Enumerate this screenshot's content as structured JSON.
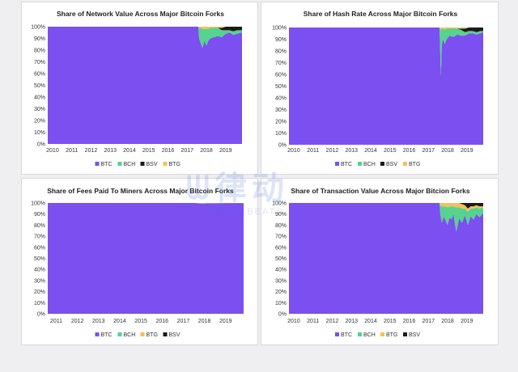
{
  "colors": {
    "btc": "#7b4ff0",
    "bch": "#55d38f",
    "bsv": "#1b1b1b",
    "btg": "#f2c15c",
    "axis_text": "#333333",
    "title_text": "#222222"
  },
  "chart_data": [
    {
      "type": "area",
      "title": "Share of Network Value Across Major Bitcoin Forks",
      "xlabel": "",
      "ylabel": "",
      "x_ticks": [
        "2010",
        "2011",
        "2012",
        "2013",
        "2014",
        "2015",
        "2016",
        "2017",
        "2018",
        "2019"
      ],
      "x_range": [
        2009.75,
        2019.85
      ],
      "y_ticks": [
        "0%",
        "10%",
        "20%",
        "30%",
        "40%",
        "50%",
        "60%",
        "70%",
        "80%",
        "90%",
        "100%"
      ],
      "ylim": [
        0,
        100
      ],
      "legend": [
        "BTC",
        "BCH",
        "BSV",
        "BTG"
      ],
      "legend_position": "bottom",
      "fork_start": 2017.58,
      "series": [
        {
          "name": "BTC",
          "x": [
            2009.75,
            2017.58,
            2017.62,
            2017.7,
            2017.8,
            2017.9,
            2018.0,
            2018.1,
            2018.2,
            2018.4,
            2018.6,
            2018.8,
            2019.0,
            2019.2,
            2019.4,
            2019.6,
            2019.85
          ],
          "values": [
            100,
            100,
            90,
            86,
            82,
            88,
            84,
            88,
            90,
            91,
            92,
            91,
            94,
            95,
            93,
            94,
            95
          ]
        },
        {
          "name": "BCH",
          "x": [
            2009.75,
            2017.58,
            2017.62,
            2017.7,
            2017.8,
            2017.9,
            2018.0,
            2018.1,
            2018.2,
            2018.4,
            2018.6,
            2018.8,
            2019.0,
            2019.2,
            2019.4,
            2019.6,
            2019.85
          ],
          "values": [
            0,
            0,
            9,
            13,
            16,
            10,
            14,
            10,
            9,
            8,
            7,
            6,
            3,
            2,
            3,
            3,
            2
          ]
        },
        {
          "name": "BSV",
          "x": [
            2009.75,
            2017.58,
            2017.62,
            2017.7,
            2017.8,
            2017.9,
            2018.0,
            2018.1,
            2018.2,
            2018.4,
            2018.6,
            2018.8,
            2019.0,
            2019.2,
            2019.4,
            2019.6,
            2019.85
          ],
          "values": [
            0,
            0,
            0,
            0,
            0,
            0,
            0,
            0,
            0,
            0,
            0,
            2,
            3,
            3,
            4,
            3,
            3
          ]
        },
        {
          "name": "BTG",
          "x": [
            2009.75,
            2017.58,
            2017.62,
            2017.7,
            2017.8,
            2017.9,
            2018.0,
            2018.1,
            2018.2,
            2018.4,
            2018.6,
            2018.8,
            2019.0,
            2019.2,
            2019.4,
            2019.6,
            2019.85
          ],
          "values": [
            0,
            0,
            1,
            1,
            2,
            2,
            2,
            2,
            1,
            1,
            1,
            1,
            0,
            0,
            0,
            0,
            0
          ]
        }
      ]
    },
    {
      "type": "area",
      "title": "Share of Hash Rate Across Major Bitcoin Forks",
      "xlabel": "",
      "ylabel": "",
      "x_ticks": [
        "2010",
        "2011",
        "2012",
        "2013",
        "2014",
        "2015",
        "2016",
        "2017",
        "2018",
        "2019"
      ],
      "x_range": [
        2009.75,
        2019.85
      ],
      "y_ticks": [
        "0%",
        "10%",
        "20%",
        "30%",
        "40%",
        "50%",
        "60%",
        "70%",
        "80%",
        "90%",
        "100%"
      ],
      "ylim": [
        0,
        100
      ],
      "legend": [
        "BTC",
        "BCH",
        "BSV",
        "BTG"
      ],
      "legend_position": "bottom",
      "fork_start": 2017.58,
      "series": [
        {
          "name": "BTC",
          "x": [
            2009.75,
            2017.58,
            2017.6,
            2017.65,
            2017.7,
            2017.75,
            2017.85,
            2017.95,
            2018.1,
            2018.3,
            2018.5,
            2018.7,
            2018.9,
            2019.1,
            2019.3,
            2019.5,
            2019.7,
            2019.85
          ],
          "values": [
            100,
            100,
            88,
            58,
            85,
            90,
            86,
            90,
            93,
            92,
            94,
            93,
            93,
            95,
            95,
            94,
            95,
            96
          ]
        },
        {
          "name": "BCH",
          "x": [
            2009.75,
            2017.58,
            2017.6,
            2017.65,
            2017.7,
            2017.75,
            2017.85,
            2017.95,
            2018.1,
            2018.3,
            2018.5,
            2018.7,
            2018.9,
            2019.1,
            2019.3,
            2019.5,
            2019.7,
            2019.85
          ],
          "values": [
            0,
            0,
            11,
            40,
            14,
            9,
            12,
            9,
            6,
            7,
            5,
            5,
            3,
            2,
            2,
            2,
            2,
            1
          ]
        },
        {
          "name": "BSV",
          "x": [
            2009.75,
            2017.58,
            2017.6,
            2017.65,
            2017.7,
            2017.75,
            2017.85,
            2017.95,
            2018.1,
            2018.3,
            2018.5,
            2018.7,
            2018.9,
            2019.1,
            2019.3,
            2019.5,
            2019.7,
            2019.85
          ],
          "values": [
            0,
            0,
            0,
            0,
            0,
            0,
            0,
            0,
            0,
            0,
            0,
            1,
            3,
            3,
            3,
            4,
            3,
            3
          ]
        },
        {
          "name": "BTG",
          "x": [
            2009.75,
            2017.58,
            2017.6,
            2017.65,
            2017.7,
            2017.75,
            2017.85,
            2017.95,
            2018.1,
            2018.3,
            2018.5,
            2018.7,
            2018.9,
            2019.1,
            2019.3,
            2019.5,
            2019.7,
            2019.85
          ],
          "values": [
            0,
            0,
            1,
            2,
            1,
            1,
            2,
            1,
            1,
            1,
            1,
            1,
            1,
            0,
            0,
            0,
            0,
            0
          ]
        }
      ]
    },
    {
      "type": "area",
      "title": "Share of Fees Paid To Miners Across Major Bitcoin Forks",
      "xlabel": "",
      "ylabel": "",
      "x_ticks": [
        "2011",
        "2012",
        "2013",
        "2014",
        "2015",
        "2016",
        "2017",
        "2018",
        "2019"
      ],
      "x_range": [
        2010.6,
        2019.85
      ],
      "y_ticks": [
        "0%",
        "10%",
        "20%",
        "30%",
        "40%",
        "50%",
        "60%",
        "70%",
        "80%",
        "90%",
        "100%"
      ],
      "ylim": [
        0,
        100
      ],
      "legend": [
        "BTC",
        "BCH",
        "BTG",
        "BSV"
      ],
      "legend_position": "bottom",
      "fork_start": 2017.58,
      "series": [
        {
          "name": "BTC",
          "x": [
            2010.6,
            2017.58,
            2017.7,
            2017.9,
            2018.2,
            2018.6,
            2019.0,
            2019.4,
            2019.85
          ],
          "values": [
            100,
            100,
            99.6,
            99.5,
            99.7,
            99.8,
            99.8,
            99.8,
            99.8
          ]
        },
        {
          "name": "BCH",
          "x": [
            2010.6,
            2017.58,
            2017.7,
            2017.9,
            2018.2,
            2018.6,
            2019.0,
            2019.4,
            2019.85
          ],
          "values": [
            0,
            0,
            0.3,
            0.4,
            0.2,
            0.1,
            0.1,
            0.1,
            0.1
          ]
        },
        {
          "name": "BTG",
          "x": [
            2010.6,
            2017.58,
            2017.7,
            2017.9,
            2018.2,
            2018.6,
            2019.0,
            2019.4,
            2019.85
          ],
          "values": [
            0,
            0,
            0.1,
            0.1,
            0.1,
            0.1,
            0,
            0,
            0
          ]
        },
        {
          "name": "BSV",
          "x": [
            2010.6,
            2017.58,
            2017.7,
            2017.9,
            2018.2,
            2018.6,
            2019.0,
            2019.4,
            2019.85
          ],
          "values": [
            0,
            0,
            0,
            0,
            0,
            0,
            0.1,
            0.1,
            0.1
          ]
        }
      ]
    },
    {
      "type": "area",
      "title": "Share of Transaction Value Across Major Bitcion Forks",
      "xlabel": "",
      "ylabel": "",
      "x_ticks": [
        "2010",
        "2011",
        "2012",
        "2013",
        "2014",
        "2015",
        "2016",
        "2017",
        "2018",
        "2019"
      ],
      "x_range": [
        2009.75,
        2019.85
      ],
      "y_ticks": [
        "0%",
        "10%",
        "20%",
        "30%",
        "40%",
        "50%",
        "60%",
        "70%",
        "80%",
        "90%",
        "100%"
      ],
      "ylim": [
        0,
        100
      ],
      "legend": [
        "BTC",
        "BCH",
        "BTG",
        "BSV"
      ],
      "legend_position": "bottom",
      "fork_start": 2017.58,
      "series": [
        {
          "name": "BTC",
          "x": [
            2009.75,
            2017.58,
            2017.62,
            2017.7,
            2017.8,
            2017.9,
            2018.0,
            2018.1,
            2018.2,
            2018.3,
            2018.45,
            2018.6,
            2018.75,
            2018.9,
            2019.05,
            2019.2,
            2019.35,
            2019.5,
            2019.65,
            2019.85
          ],
          "values": [
            100,
            100,
            90,
            82,
            88,
            84,
            80,
            87,
            85,
            90,
            74,
            86,
            82,
            89,
            80,
            88,
            85,
            90,
            87,
            91
          ]
        },
        {
          "name": "BCH",
          "x": [
            2009.75,
            2017.58,
            2017.62,
            2017.7,
            2017.8,
            2017.9,
            2018.0,
            2018.1,
            2018.2,
            2018.3,
            2018.45,
            2018.6,
            2018.75,
            2018.9,
            2019.05,
            2019.2,
            2019.35,
            2019.5,
            2019.65,
            2019.85
          ],
          "values": [
            0,
            0,
            8,
            15,
            9,
            13,
            16,
            10,
            12,
            7,
            22,
            10,
            13,
            6,
            12,
            7,
            10,
            6,
            8,
            5
          ]
        },
        {
          "name": "BTG",
          "x": [
            2009.75,
            2017.58,
            2017.62,
            2017.7,
            2017.8,
            2017.9,
            2018.0,
            2018.1,
            2018.2,
            2018.3,
            2018.45,
            2018.6,
            2018.75,
            2018.9,
            2019.05,
            2019.2,
            2019.35,
            2019.5,
            2019.65,
            2019.85
          ],
          "values": [
            0,
            0,
            2,
            3,
            3,
            3,
            4,
            3,
            3,
            3,
            4,
            4,
            4,
            3,
            3,
            2,
            2,
            2,
            2,
            1
          ]
        },
        {
          "name": "BSV",
          "x": [
            2009.75,
            2017.58,
            2017.62,
            2017.7,
            2017.8,
            2017.9,
            2018.0,
            2018.1,
            2018.2,
            2018.3,
            2018.45,
            2018.6,
            2018.75,
            2018.9,
            2019.05,
            2019.2,
            2019.35,
            2019.5,
            2019.65,
            2019.85
          ],
          "values": [
            0,
            0,
            0,
            0,
            0,
            0,
            0,
            0,
            0,
            0,
            0,
            0,
            1,
            2,
            5,
            3,
            3,
            2,
            3,
            3
          ]
        }
      ]
    }
  ]
}
